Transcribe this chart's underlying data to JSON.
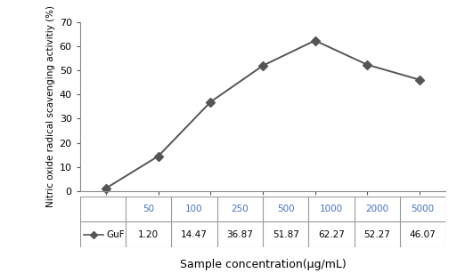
{
  "x_labels": [
    "50",
    "100",
    "250",
    "500",
    "1000",
    "2000",
    "5000"
  ],
  "x_values": [
    0,
    1,
    2,
    3,
    4,
    5,
    6
  ],
  "y_values": [
    1.2,
    14.47,
    36.87,
    51.87,
    62.27,
    52.27,
    46.07
  ],
  "legend_label": "GuF",
  "table_values": [
    "1.20",
    "14.47",
    "36.87",
    "51.87",
    "62.27",
    "52.27",
    "46.07"
  ],
  "ylabel": "Nitric oxide radical scavenging activitiy (%)",
  "xlabel": "Sample concentration(µg/mL)",
  "ylim": [
    0,
    70
  ],
  "yticks": [
    0,
    10,
    20,
    30,
    40,
    50,
    60,
    70
  ],
  "line_color": "#555555",
  "marker": "D",
  "marker_size": 5,
  "tick_label_color": "#4472C4",
  "background_color": "#ffffff",
  "table_border_color": "#999999",
  "table_font_size": 7.5,
  "axis_font_size": 8.0,
  "ylabel_font_size": 7.5
}
